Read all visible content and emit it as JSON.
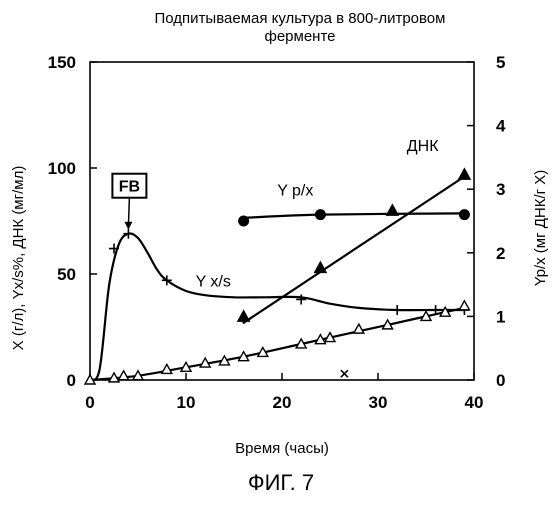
{
  "figure": {
    "title_line1": "Подпитываемая культура в 800-литровом",
    "title_line2": "ферменте",
    "caption": "ФИГ. 7"
  },
  "chart_data": {
    "type": "line",
    "xlabel": "Время (часы)",
    "ylabel": "Х (г/л), Yx/s%, ДНК (мг/мл)",
    "y2label": "Yp/x (мг ДНК/г Х)",
    "xlim": [
      0,
      40
    ],
    "ylim": [
      0,
      150
    ],
    "y2lim": [
      0,
      5
    ],
    "xticks": [
      0,
      10,
      20,
      30,
      40
    ],
    "yticks": [
      0,
      50,
      100,
      150
    ],
    "y2ticks": [
      0,
      1,
      2,
      3,
      4,
      5
    ],
    "grid": false,
    "series": [
      {
        "key": "yxs",
        "marker": "plus",
        "axis": "left",
        "points": [
          [
            2.5,
            62
          ],
          [
            4,
            69
          ],
          [
            8,
            47
          ],
          [
            22,
            38
          ],
          [
            32,
            33
          ],
          [
            36,
            33
          ],
          [
            39,
            33
          ]
        ],
        "curve": [
          [
            0,
            0
          ],
          [
            1,
            5
          ],
          [
            2,
            45
          ],
          [
            3,
            64
          ],
          [
            4,
            69
          ],
          [
            5,
            67
          ],
          [
            6,
            60
          ],
          [
            7,
            52
          ],
          [
            8,
            47
          ],
          [
            10,
            42
          ],
          [
            12,
            40
          ],
          [
            15,
            39
          ],
          [
            18,
            39
          ],
          [
            22,
            39
          ],
          [
            25,
            36
          ],
          [
            28,
            34
          ],
          [
            32,
            33
          ],
          [
            36,
            33
          ],
          [
            39,
            33
          ]
        ]
      },
      {
        "key": "dnk",
        "marker": "triangle-filled",
        "axis": "left",
        "points": [
          [
            16,
            30
          ],
          [
            24,
            53
          ],
          [
            31.5,
            80
          ],
          [
            39,
            97
          ]
        ],
        "curve": [
          [
            16,
            27
          ],
          [
            39,
            96
          ]
        ]
      },
      {
        "key": "ypx",
        "marker": "circle-filled",
        "axis": "right",
        "points": [
          [
            16,
            2.5
          ],
          [
            24,
            2.6
          ],
          [
            39,
            2.6
          ]
        ],
        "curve": [
          [
            16,
            2.55
          ],
          [
            24,
            2.6
          ],
          [
            39,
            2.62
          ]
        ]
      },
      {
        "key": "x",
        "marker": "triangle-open",
        "axis": "left",
        "points": [
          [
            0,
            0
          ],
          [
            2.5,
            1
          ],
          [
            3.5,
            2
          ],
          [
            5,
            2
          ],
          [
            8,
            5
          ],
          [
            10,
            6
          ],
          [
            12,
            8
          ],
          [
            14,
            9
          ],
          [
            16,
            11
          ],
          [
            18,
            13
          ],
          [
            22,
            17
          ],
          [
            24,
            19
          ],
          [
            25,
            20
          ],
          [
            28,
            24
          ],
          [
            31,
            26
          ],
          [
            35,
            30
          ],
          [
            37,
            32
          ],
          [
            39,
            35
          ]
        ],
        "curve": [
          [
            0,
            0
          ],
          [
            5,
            2
          ],
          [
            10,
            6
          ],
          [
            16,
            11
          ],
          [
            22,
            17
          ],
          [
            28,
            23
          ],
          [
            34,
            29
          ],
          [
            39,
            34
          ]
        ]
      },
      {
        "key": "outlier",
        "marker": "x",
        "axis": "left",
        "points": [
          [
            26.5,
            3
          ]
        ]
      }
    ],
    "annotations": [
      {
        "text": "FB",
        "boxed": true,
        "at": [
          4,
          69
        ]
      },
      {
        "text": "Y x/s",
        "at": [
          11,
          44
        ]
      },
      {
        "text": "Y p/x",
        "at": [
          19.5,
          2.9
        ]
      },
      {
        "text": "ДНК",
        "at": [
          33,
          3.6
        ]
      }
    ]
  }
}
